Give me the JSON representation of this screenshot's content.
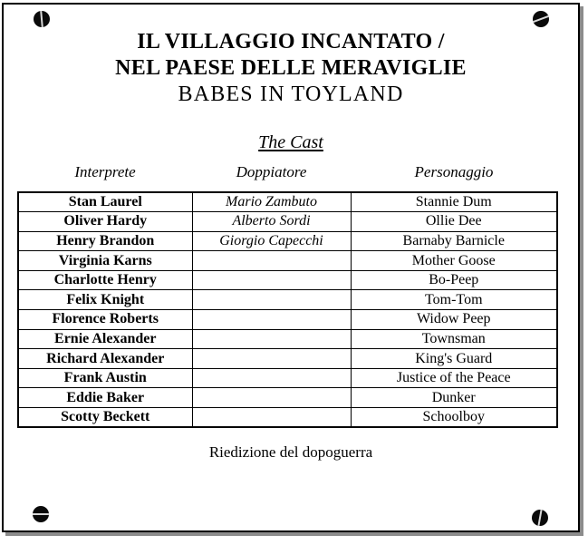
{
  "document": {
    "title_lines": [
      "IL VILLAGGIO INCANTATO /",
      "NEL PAESE DELLE MERAVIGLIE",
      "BABES IN TOYLAND"
    ],
    "section_title": "The Cast",
    "footer_note": "Riedizione del dopoguerra"
  },
  "cast_table": {
    "columns": [
      "Interprete",
      "Doppiatore",
      "Personaggio"
    ],
    "rows": [
      {
        "interprete": "Stan Laurel",
        "doppiatore": "Mario Zambuto",
        "personaggio": "Stannie Dum"
      },
      {
        "interprete": "Oliver Hardy",
        "doppiatore": "Alberto Sordi",
        "personaggio": "Ollie Dee"
      },
      {
        "interprete": "Henry Brandon",
        "doppiatore": "Giorgio Capecchi",
        "personaggio": "Barnaby Barnicle"
      },
      {
        "interprete": "Virginia Karns",
        "doppiatore": "",
        "personaggio": "Mother Goose"
      },
      {
        "interprete": "Charlotte Henry",
        "doppiatore": "",
        "personaggio": "Bo-Peep"
      },
      {
        "interprete": "Felix Knight",
        "doppiatore": "",
        "personaggio": "Tom-Tom"
      },
      {
        "interprete": "Florence Roberts",
        "doppiatore": "",
        "personaggio": "Widow Peep"
      },
      {
        "interprete": "Ernie Alexander",
        "doppiatore": "",
        "personaggio": "Townsman"
      },
      {
        "interprete": "Richard Alexander",
        "doppiatore": "",
        "personaggio": "King's Guard"
      },
      {
        "interprete": "Frank Austin",
        "doppiatore": "",
        "personaggio": "Justice of the Peace"
      },
      {
        "interprete": "Eddie Baker",
        "doppiatore": "",
        "personaggio": "Dunker"
      },
      {
        "interprete": "Scotty Beckett",
        "doppiatore": "",
        "personaggio": "Schoolboy"
      }
    ]
  },
  "icons": {
    "corner_screws": [
      "screw-icon-top-left",
      "screw-icon-top-right",
      "screw-icon-bottom-left",
      "screw-icon-bottom-right"
    ]
  },
  "colors": {
    "text": "#000000",
    "background": "#ffffff",
    "border": "#000000",
    "shadow": "#8c8c8c"
  }
}
